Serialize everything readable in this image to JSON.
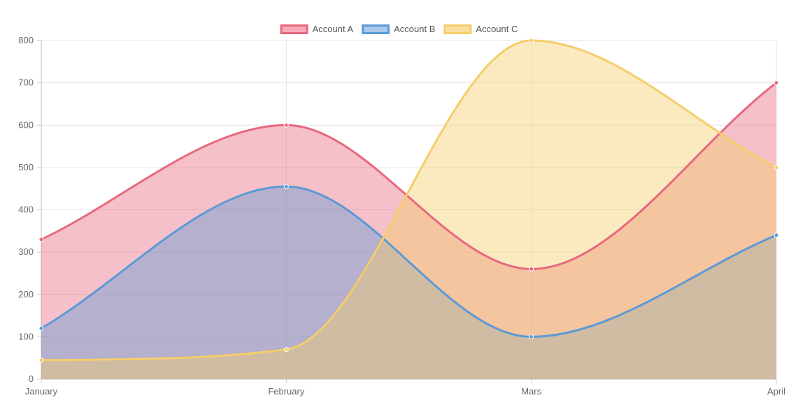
{
  "chart_data": {
    "type": "area",
    "categories": [
      "January",
      "February",
      "Mars",
      "April"
    ],
    "ylim": [
      0,
      800
    ],
    "yticks": [
      0,
      100,
      200,
      300,
      400,
      500,
      600,
      700,
      800
    ],
    "grid": true,
    "legend_position": "top",
    "series": [
      {
        "name": "Account A",
        "values": [
          330,
          600,
          260,
          700
        ],
        "color": "#e8687e",
        "fill": "#f6a9b9"
      },
      {
        "name": "Account B",
        "values": [
          120,
          455,
          100,
          340
        ],
        "color": "#5b9ad5",
        "fill": "#a7c8e8"
      },
      {
        "name": "Account C",
        "values": [
          45,
          70,
          800,
          500
        ],
        "color": "#f5cd6a",
        "fill": "#fbdf9f"
      }
    ]
  }
}
